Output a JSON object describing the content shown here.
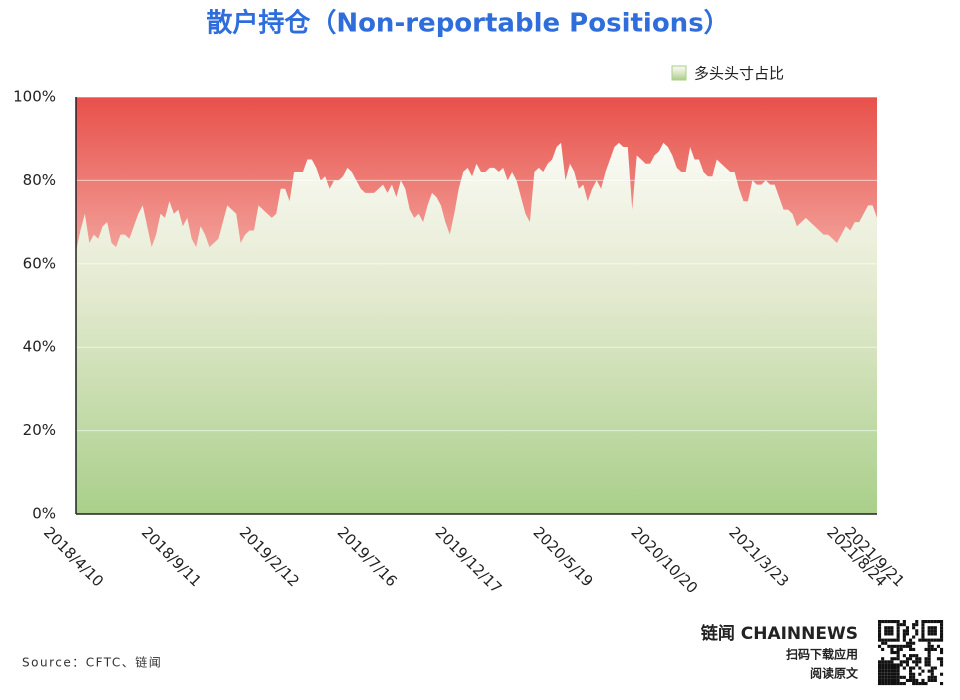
{
  "chart_data": {
    "type": "area",
    "title": "散户持仓（Non-reportable Positions）",
    "source": "Source：CFTC、链闻",
    "brand": "链闻 CHAINNEWS",
    "qr_caption_1": "扫码下载应用",
    "qr_caption_2": "阅读原文",
    "ylim": [
      0,
      100
    ],
    "yticks": [
      {
        "value": 0,
        "label": "0%"
      },
      {
        "value": 20,
        "label": "20%"
      },
      {
        "value": 40,
        "label": "40%"
      },
      {
        "value": 60,
        "label": "60%"
      },
      {
        "value": 80,
        "label": "80%"
      },
      {
        "value": 100,
        "label": "100%"
      }
    ],
    "grid": true,
    "legend": "top-right",
    "categories": [
      "2018/4/10",
      null,
      null,
      null,
      null,
      null,
      null,
      null,
      null,
      null,
      null,
      null,
      null,
      null,
      null,
      null,
      null,
      null,
      null,
      null,
      null,
      null,
      "2018/9/11",
      null,
      null,
      null,
      null,
      null,
      null,
      null,
      null,
      null,
      null,
      null,
      null,
      null,
      null,
      null,
      null,
      null,
      null,
      null,
      null,
      null,
      "2019/2/12",
      null,
      null,
      null,
      null,
      null,
      null,
      null,
      null,
      null,
      null,
      null,
      null,
      null,
      null,
      null,
      null,
      null,
      null,
      null,
      null,
      null,
      "2019/7/16",
      null,
      null,
      null,
      null,
      null,
      null,
      null,
      null,
      null,
      null,
      null,
      null,
      null,
      null,
      null,
      null,
      null,
      null,
      null,
      null,
      null,
      "2019/12/17",
      null,
      null,
      null,
      null,
      null,
      null,
      null,
      null,
      null,
      null,
      null,
      null,
      null,
      null,
      null,
      null,
      null,
      null,
      null,
      null,
      null,
      "2020/5/19",
      null,
      null,
      null,
      null,
      null,
      null,
      null,
      null,
      null,
      null,
      null,
      null,
      null,
      null,
      null,
      null,
      null,
      null,
      null,
      null,
      null,
      "2020/10/20",
      null,
      null,
      null,
      null,
      null,
      null,
      null,
      null,
      null,
      null,
      null,
      null,
      null,
      null,
      null,
      null,
      null,
      null,
      null,
      null,
      null,
      "2021/3/23",
      null,
      null,
      null,
      null,
      null,
      null,
      null,
      null,
      null,
      null,
      null,
      null,
      null,
      null,
      null,
      null,
      null,
      null,
      null,
      null,
      null,
      "2021/8/24",
      null,
      null,
      null,
      "2021/9/21"
    ],
    "series": [
      {
        "name": "多头头寸占比",
        "color": "#a9cf8a",
        "values": [
          63,
          68,
          72,
          65,
          67,
          66,
          69,
          70,
          65,
          64,
          67,
          67,
          66,
          69,
          72,
          74,
          69,
          64,
          67,
          72,
          71,
          75,
          72,
          73,
          69,
          71,
          66,
          64,
          69,
          67,
          64,
          65,
          66,
          70,
          74,
          73,
          72,
          65,
          67,
          68,
          68,
          74,
          73,
          72,
          71,
          72,
          78,
          78,
          75,
          82,
          82,
          82,
          85,
          85,
          83,
          80,
          81,
          78,
          80,
          80,
          81,
          83,
          82,
          80,
          78,
          77,
          77,
          77,
          78,
          79,
          77,
          79,
          76,
          80,
          78,
          73,
          71,
          72,
          70,
          74,
          77,
          76,
          74,
          70,
          67,
          72,
          78,
          82,
          83,
          81,
          84,
          82,
          82,
          83,
          83,
          82,
          83,
          80,
          82,
          80,
          76,
          72,
          70,
          82,
          83,
          82,
          84,
          85,
          88,
          89,
          80,
          84,
          82,
          78,
          79,
          75,
          78,
          80,
          78,
          82,
          85,
          88,
          89,
          88,
          88,
          73,
          86,
          85,
          84,
          84,
          86,
          87,
          89,
          88,
          86,
          83,
          82,
          82,
          88,
          85,
          85,
          82,
          81,
          81,
          85,
          84,
          83,
          82,
          82,
          78,
          75,
          75,
          80,
          79,
          79,
          80,
          79,
          79,
          76,
          73,
          73,
          72,
          69,
          70,
          71,
          70,
          69,
          68,
          67,
          67,
          66,
          65,
          67,
          69,
          68,
          70,
          70,
          72,
          74,
          74,
          71
        ]
      }
    ]
  }
}
